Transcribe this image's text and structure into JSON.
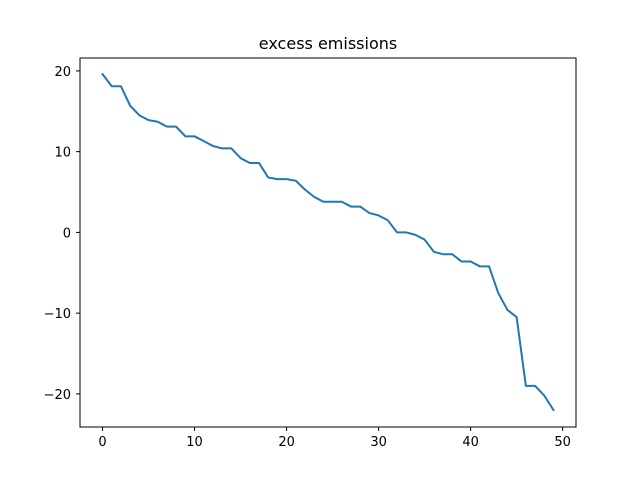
{
  "chart_data": {
    "type": "line",
    "title": "excess emissions",
    "xlabel": "",
    "ylabel": "",
    "xlim": [
      -2.45,
      51.45
    ],
    "ylim": [
      -24.1,
      21.6
    ],
    "xticks": [
      0,
      10,
      20,
      30,
      40,
      50
    ],
    "yticks": [
      -20,
      -10,
      0,
      10,
      20
    ],
    "grid": false,
    "series": [
      {
        "color": "#1f77b4",
        "x": [
          0,
          1,
          2,
          3,
          4,
          5,
          6,
          7,
          8,
          9,
          10,
          11,
          12,
          13,
          14,
          15,
          16,
          17,
          18,
          19,
          20,
          21,
          22,
          23,
          24,
          25,
          26,
          27,
          28,
          29,
          30,
          31,
          32,
          33,
          34,
          35,
          36,
          37,
          38,
          39,
          40,
          41,
          42,
          43,
          44,
          45,
          46,
          47,
          48,
          49
        ],
        "values": [
          19.6,
          18.1,
          18.1,
          15.7,
          14.5,
          13.9,
          13.7,
          13.1,
          13.1,
          11.9,
          11.9,
          11.3,
          10.7,
          10.4,
          10.4,
          9.2,
          8.6,
          8.6,
          6.8,
          6.6,
          6.6,
          6.4,
          5.3,
          4.4,
          3.8,
          3.8,
          3.8,
          3.2,
          3.2,
          2.4,
          2.1,
          1.5,
          0.0,
          0.0,
          -0.3,
          -0.9,
          -2.4,
          -2.7,
          -2.7,
          -3.6,
          -3.6,
          -4.2,
          -4.2,
          -7.5,
          -9.6,
          -10.5,
          -19.0,
          -19.0,
          -20.2,
          -22.0
        ]
      }
    ]
  }
}
